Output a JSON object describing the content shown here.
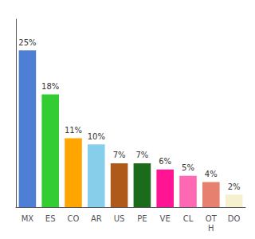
{
  "chart_data": {
    "type": "bar",
    "categories": [
      "MX",
      "ES",
      "CO",
      "AR",
      "US",
      "PE",
      "VE",
      "CL",
      "OT\nH",
      "DO"
    ],
    "values": [
      25,
      18,
      11,
      10,
      7,
      7,
      6,
      5,
      4,
      2
    ],
    "value_labels": [
      "25%",
      "18%",
      "11%",
      "10%",
      "7%",
      "7%",
      "6%",
      "5%",
      "4%",
      "2%"
    ],
    "data_labels": true,
    "colors": [
      "#4d7fd4",
      "#33cc33",
      "#ffa500",
      "#87ceeb",
      "#b05a1a",
      "#1a6b1a",
      "#ff1493",
      "#ff69b4",
      "#e88070",
      "#f5f0d0"
    ],
    "ylim": [
      0,
      30
    ],
    "tick_labels": "x",
    "grid": false
  }
}
